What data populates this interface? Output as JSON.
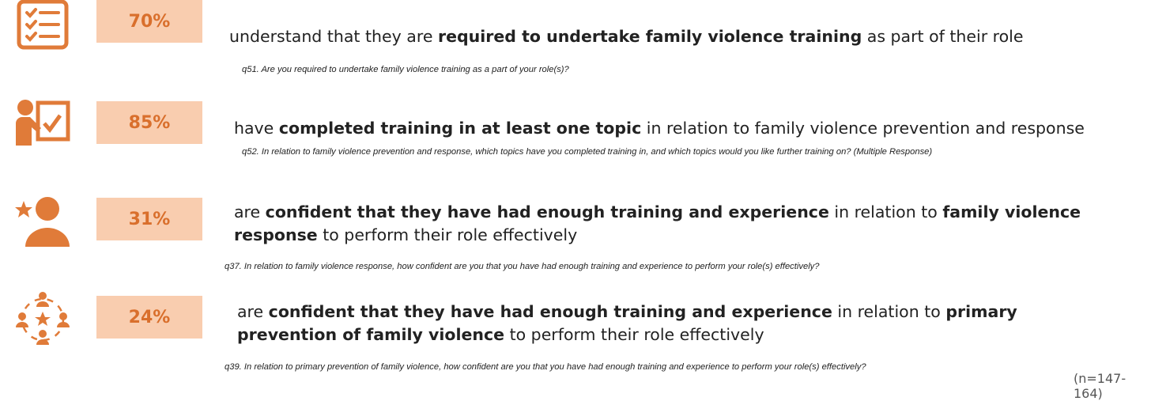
{
  "items": [
    {
      "stat": "70%",
      "statement": [
        {
          "text": "understand that they are "
        },
        {
          "text": "required to undertake family violence training",
          "bold": true
        },
        {
          "text": " as part of their role"
        }
      ],
      "question": "q51. Are you required to undertake family violence training as a part of your role(s)?"
    },
    {
      "stat": "85%",
      "statement": [
        {
          "text": "have "
        },
        {
          "text": "completed training in at least one topic",
          "bold": true
        },
        {
          "text": " in relation to family violence prevention and response"
        }
      ],
      "question": "q52. In relation to family violence prevention and response, which topics have you completed training in, and which topics would you like further training on? (Multiple Response)"
    },
    {
      "stat": "31%",
      "statement": [
        {
          "text": "are "
        },
        {
          "text": "confident that they have had enough training and experience",
          "bold": true
        },
        {
          "text": " in relation to "
        },
        {
          "text": "family violence response",
          "bold": true
        },
        {
          "text": " to perform their role effectively"
        }
      ],
      "question": "q37. In relation to family violence response, how confident are you that you have had enough training and experience to perform your role(s) effectively?"
    },
    {
      "stat": "24%",
      "statement": [
        {
          "text": "are "
        },
        {
          "text": "confident that they have had enough training and experience",
          "bold": true
        },
        {
          "text": " in relation to "
        },
        {
          "text": "primary prevention of family violence",
          "bold": true
        },
        {
          "text": " to perform their role effectively"
        }
      ],
      "question": "q39. In relation to primary prevention of family violence, how confident are you that you have had enough training and experience to perform your role(s) effectively?"
    }
  ],
  "footnote": "(n=147-164)"
}
